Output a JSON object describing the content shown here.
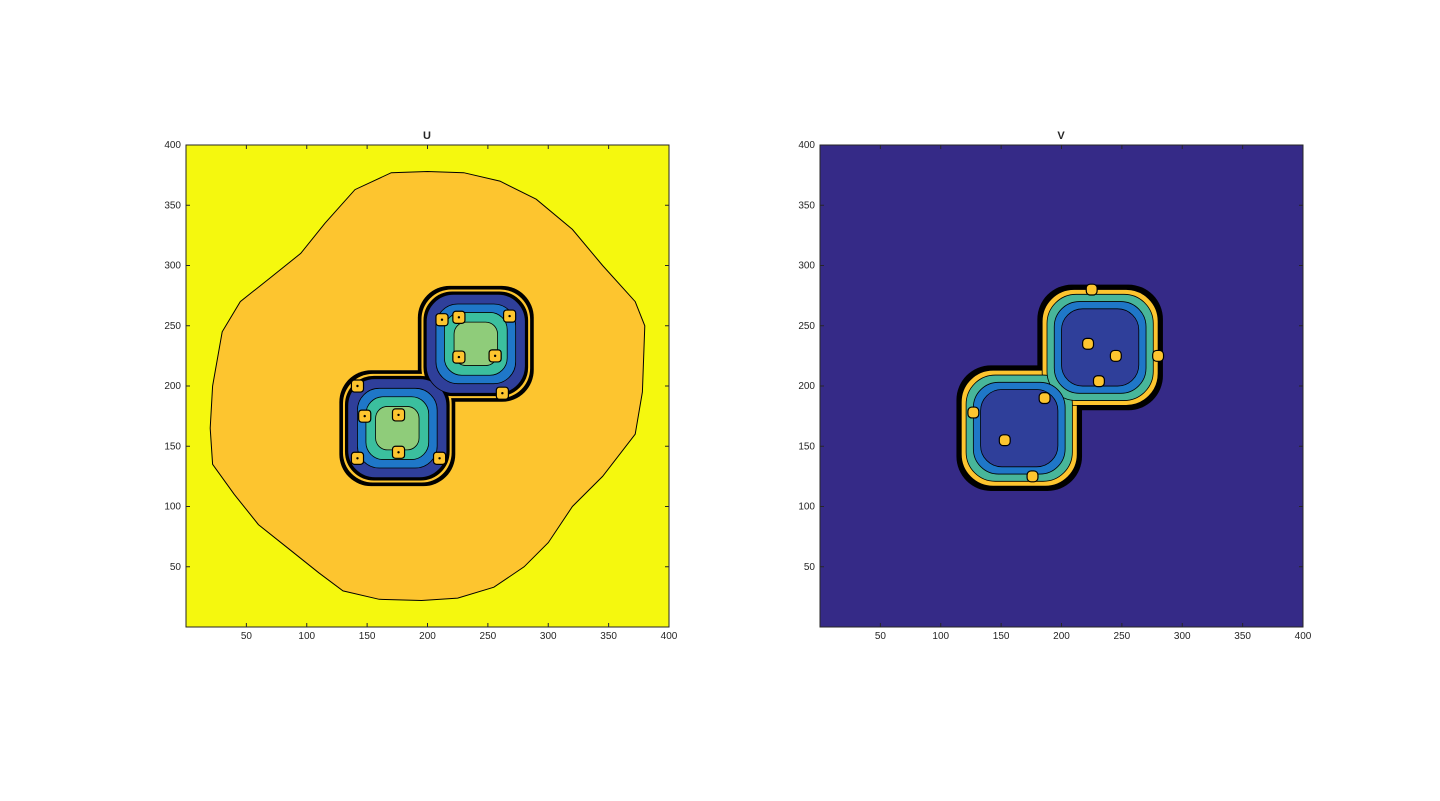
{
  "chart_data": [
    {
      "type": "contourf",
      "title": "U",
      "xlim": [
        0,
        400
      ],
      "ylim": [
        0,
        400
      ],
      "xticks": [
        50,
        100,
        150,
        200,
        250,
        300,
        350,
        400
      ],
      "yticks": [
        50,
        100,
        150,
        200,
        250,
        300,
        350,
        400
      ],
      "xtick_labels": [
        "50",
        "100",
        "150",
        "200",
        "250",
        "300",
        "350",
        "400"
      ],
      "ytick_labels": [
        "50",
        "100",
        "150",
        "200",
        "250",
        "300",
        "350",
        "400"
      ],
      "grid": false,
      "colors": {
        "background": "#f5f80e",
        "plateau": "#fdc52f",
        "ring_dark": "#2f3f9a",
        "ring_mid": "#1f77c8",
        "ring_teal": "#3bbf9e",
        "ring_light": "#8fcc7a",
        "contour": "#000000"
      },
      "plateau_outline": [
        [
          20,
          165
        ],
        [
          22,
          200
        ],
        [
          30,
          245
        ],
        [
          45,
          270
        ],
        [
          70,
          290
        ],
        [
          95,
          310
        ],
        [
          115,
          335
        ],
        [
          140,
          363
        ],
        [
          170,
          377
        ],
        [
          200,
          378
        ],
        [
          230,
          377
        ],
        [
          260,
          370
        ],
        [
          290,
          355
        ],
        [
          320,
          330
        ],
        [
          345,
          300
        ],
        [
          372,
          270
        ],
        [
          380,
          250
        ],
        [
          378,
          195
        ],
        [
          372,
          160
        ],
        [
          345,
          125
        ],
        [
          320,
          100
        ],
        [
          300,
          70
        ],
        [
          280,
          50
        ],
        [
          255,
          33
        ],
        [
          225,
          24
        ],
        [
          195,
          22
        ],
        [
          160,
          23
        ],
        [
          130,
          30
        ],
        [
          110,
          45
        ],
        [
          85,
          65
        ],
        [
          60,
          85
        ],
        [
          40,
          110
        ],
        [
          22,
          135
        ]
      ],
      "blobs": [
        {
          "x": 175,
          "y": 165,
          "r": 48
        },
        {
          "x": 240,
          "y": 235,
          "r": 48
        }
      ],
      "spots": [
        {
          "x": 148,
          "y": 175,
          "value": "high"
        },
        {
          "x": 176,
          "y": 176,
          "value": "high"
        },
        {
          "x": 176,
          "y": 145,
          "value": "high"
        },
        {
          "x": 142,
          "y": 140,
          "value": "high"
        },
        {
          "x": 210,
          "y": 140,
          "value": "high"
        },
        {
          "x": 142,
          "y": 200,
          "value": "high"
        },
        {
          "x": 226,
          "y": 224,
          "value": "high"
        },
        {
          "x": 226,
          "y": 257,
          "value": "high"
        },
        {
          "x": 256,
          "y": 225,
          "value": "high"
        },
        {
          "x": 212,
          "y": 255,
          "value": "high"
        },
        {
          "x": 268,
          "y": 258,
          "value": "high"
        },
        {
          "x": 262,
          "y": 194,
          "value": "high"
        }
      ]
    },
    {
      "type": "contourf",
      "title": "V",
      "xlim": [
        0,
        400
      ],
      "ylim": [
        0,
        400
      ],
      "xticks": [
        50,
        100,
        150,
        200,
        250,
        300,
        350,
        400
      ],
      "yticks": [
        50,
        100,
        150,
        200,
        250,
        300,
        350,
        400
      ],
      "xtick_labels": [
        "50",
        "100",
        "150",
        "200",
        "250",
        "300",
        "350",
        "400"
      ],
      "ytick_labels": [
        "50",
        "100",
        "150",
        "200",
        "250",
        "300",
        "350",
        "400"
      ],
      "grid": false,
      "colors": {
        "background": "#352a87",
        "ring_dark": "#000000",
        "ring_yellow": "#fdc52f",
        "ring_teal": "#48b69a",
        "ring_mid": "#1f77c8",
        "inner": "#2f3f9a",
        "contour": "#000000"
      },
      "blobs": [
        {
          "x": 165,
          "y": 165,
          "r": 52
        },
        {
          "x": 232,
          "y": 232,
          "r": 52
        }
      ],
      "spots": [
        {
          "x": 153,
          "y": 155,
          "value": "high"
        },
        {
          "x": 186,
          "y": 190,
          "value": "high"
        },
        {
          "x": 176,
          "y": 125,
          "value": "high"
        },
        {
          "x": 127,
          "y": 178,
          "value": "high"
        },
        {
          "x": 222,
          "y": 235,
          "value": "high"
        },
        {
          "x": 245,
          "y": 225,
          "value": "high"
        },
        {
          "x": 231,
          "y": 204,
          "value": "high"
        },
        {
          "x": 280,
          "y": 225,
          "value": "high"
        },
        {
          "x": 225,
          "y": 280,
          "value": "high"
        }
      ]
    }
  ]
}
